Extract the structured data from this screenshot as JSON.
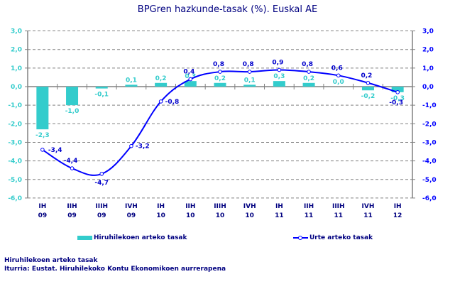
{
  "title": "BPGren hazkunde-tasak (%). Euskal AE",
  "legend": {
    "bars_label": "Hiruhilekoen arteko tasak",
    "line_label": "Urte arteko tasak"
  },
  "footer": {
    "line1": "Hiruhilekoen arteko tasak",
    "line2": "Iturria: Eustat. Hiruhilekoko Kontu Ekonomikoen aurrerapena"
  },
  "colors": {
    "bars": "#33cccc",
    "line": "#0000ff",
    "text": "#000080",
    "grid": "#808080"
  },
  "chart_data": {
    "type": "bar+line",
    "title": "BPGren hazkunde-tasak (%). Euskal AE",
    "categories": [
      [
        "IH",
        "09"
      ],
      [
        "IIH",
        "09"
      ],
      [
        "IIIH",
        "09"
      ],
      [
        "IVH",
        "09"
      ],
      [
        "IH",
        "10"
      ],
      [
        "IIH",
        "10"
      ],
      [
        "IIIH",
        "10"
      ],
      [
        "IVH",
        "10"
      ],
      [
        "IH",
        "11"
      ],
      [
        "IIH",
        "11"
      ],
      [
        "IIIH",
        "11"
      ],
      [
        "IVH",
        "11"
      ],
      [
        "IH",
        "12"
      ]
    ],
    "series": [
      {
        "name": "Hiruhilekoen arteko tasak",
        "type": "bar",
        "axis": "left",
        "values": [
          -2.3,
          -1.0,
          -0.1,
          0.1,
          0.2,
          0.3,
          0.2,
          0.1,
          0.3,
          0.2,
          0.0,
          -0.2,
          -0.3
        ],
        "labels": [
          "-2,3",
          "-1,0",
          "-0,1",
          "0,1",
          "0,2",
          "0,3",
          "0,2",
          "0,1",
          "0,3",
          "0,2",
          "0,0",
          "-0,2",
          "-0,3"
        ]
      },
      {
        "name": "Urte arteko tasak",
        "type": "line",
        "axis": "right",
        "values": [
          -3.4,
          -4.4,
          -4.7,
          -3.2,
          -0.8,
          0.4,
          0.8,
          0.8,
          0.9,
          0.8,
          0.6,
          0.2,
          -0.3
        ],
        "labels": [
          "-3,4",
          "-4,4",
          "-4,7",
          "-3,2",
          "-0,8",
          "0,4",
          "0,8",
          "0,8",
          "0,9",
          "0,8",
          "0,6",
          "0,2",
          "-0,3"
        ]
      }
    ],
    "y_left": {
      "ylim": [
        -6.0,
        3.0
      ],
      "ticks": [
        "3,0",
        "2,0",
        "1,0",
        "0,0",
        "-1,0",
        "-2,0",
        "-3,0",
        "-4,0",
        "-5,0",
        "-6,0"
      ]
    },
    "y_right": {
      "ylim": [
        -6.0,
        3.0
      ],
      "ticks": [
        "3,0",
        "2,0",
        "1,0",
        "0,0",
        "-1,0",
        "-2,0",
        "-3,0",
        "-4,0",
        "-5,0",
        "-6,0"
      ]
    },
    "grid": true,
    "legend_position": "bottom",
    "xlabel": "",
    "ylabel": ""
  }
}
